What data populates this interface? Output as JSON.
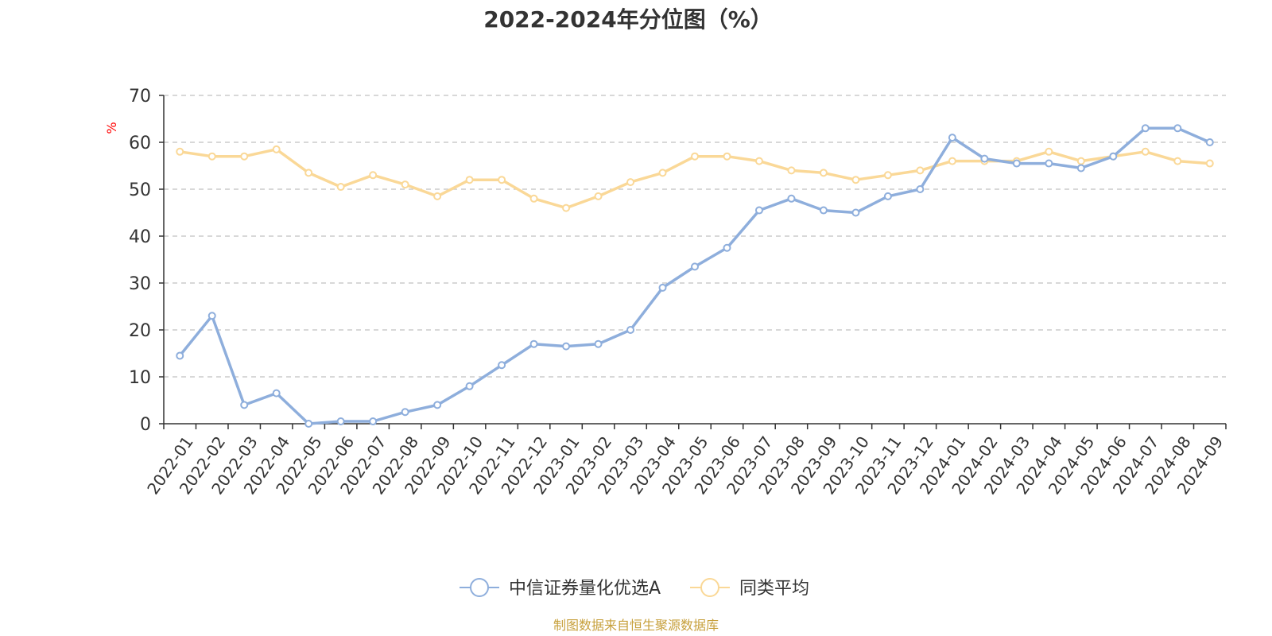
{
  "chart_data": {
    "type": "line",
    "title": "2022-2024年分位图（%）",
    "ylabel": "%",
    "xlabel": "",
    "ylim": [
      0,
      70
    ],
    "yticks": [
      0,
      10,
      20,
      30,
      40,
      50,
      60,
      70
    ],
    "grid": true,
    "legend_position": "bottom-center",
    "categories": [
      "2022-01",
      "2022-02",
      "2022-03",
      "2022-04",
      "2022-05",
      "2022-06",
      "2022-07",
      "2022-08",
      "2022-09",
      "2022-10",
      "2022-11",
      "2022-12",
      "2023-01",
      "2023-02",
      "2023-03",
      "2023-04",
      "2023-05",
      "2023-06",
      "2023-07",
      "2023-08",
      "2023-09",
      "2023-10",
      "2023-11",
      "2023-12",
      "2024-01",
      "2024-02",
      "2024-03",
      "2024-04",
      "2024-05",
      "2024-06",
      "2024-07",
      "2024-08",
      "2024-09"
    ],
    "series": [
      {
        "name": "中信证券量化优选A",
        "color": "#8eaedc",
        "values": [
          14.5,
          23,
          4,
          6.5,
          0,
          0.5,
          0.5,
          2.5,
          4,
          8,
          12.5,
          17,
          16.5,
          17,
          20,
          29,
          33.5,
          37.5,
          45.5,
          48,
          45.5,
          45,
          48.5,
          50,
          61,
          56.5,
          55.5,
          55.5,
          54.5,
          57,
          63,
          63,
          60
        ]
      },
      {
        "name": "同类平均",
        "color": "#fad897",
        "values": [
          58,
          57,
          57,
          58.5,
          53.5,
          50.5,
          53,
          51,
          48.5,
          52,
          52,
          48,
          46,
          48.5,
          51.5,
          53.5,
          57,
          57,
          56,
          54,
          53.5,
          52,
          53,
          54,
          56,
          56,
          56,
          58,
          56,
          57,
          58,
          56,
          55.5
        ]
      }
    ]
  },
  "source_text": "制图数据来自恒生聚源数据库",
  "colors": {
    "unit_label": "#ff0000",
    "source_text": "#c7a03c",
    "axis": "#333333",
    "grid": "#cccccc"
  }
}
